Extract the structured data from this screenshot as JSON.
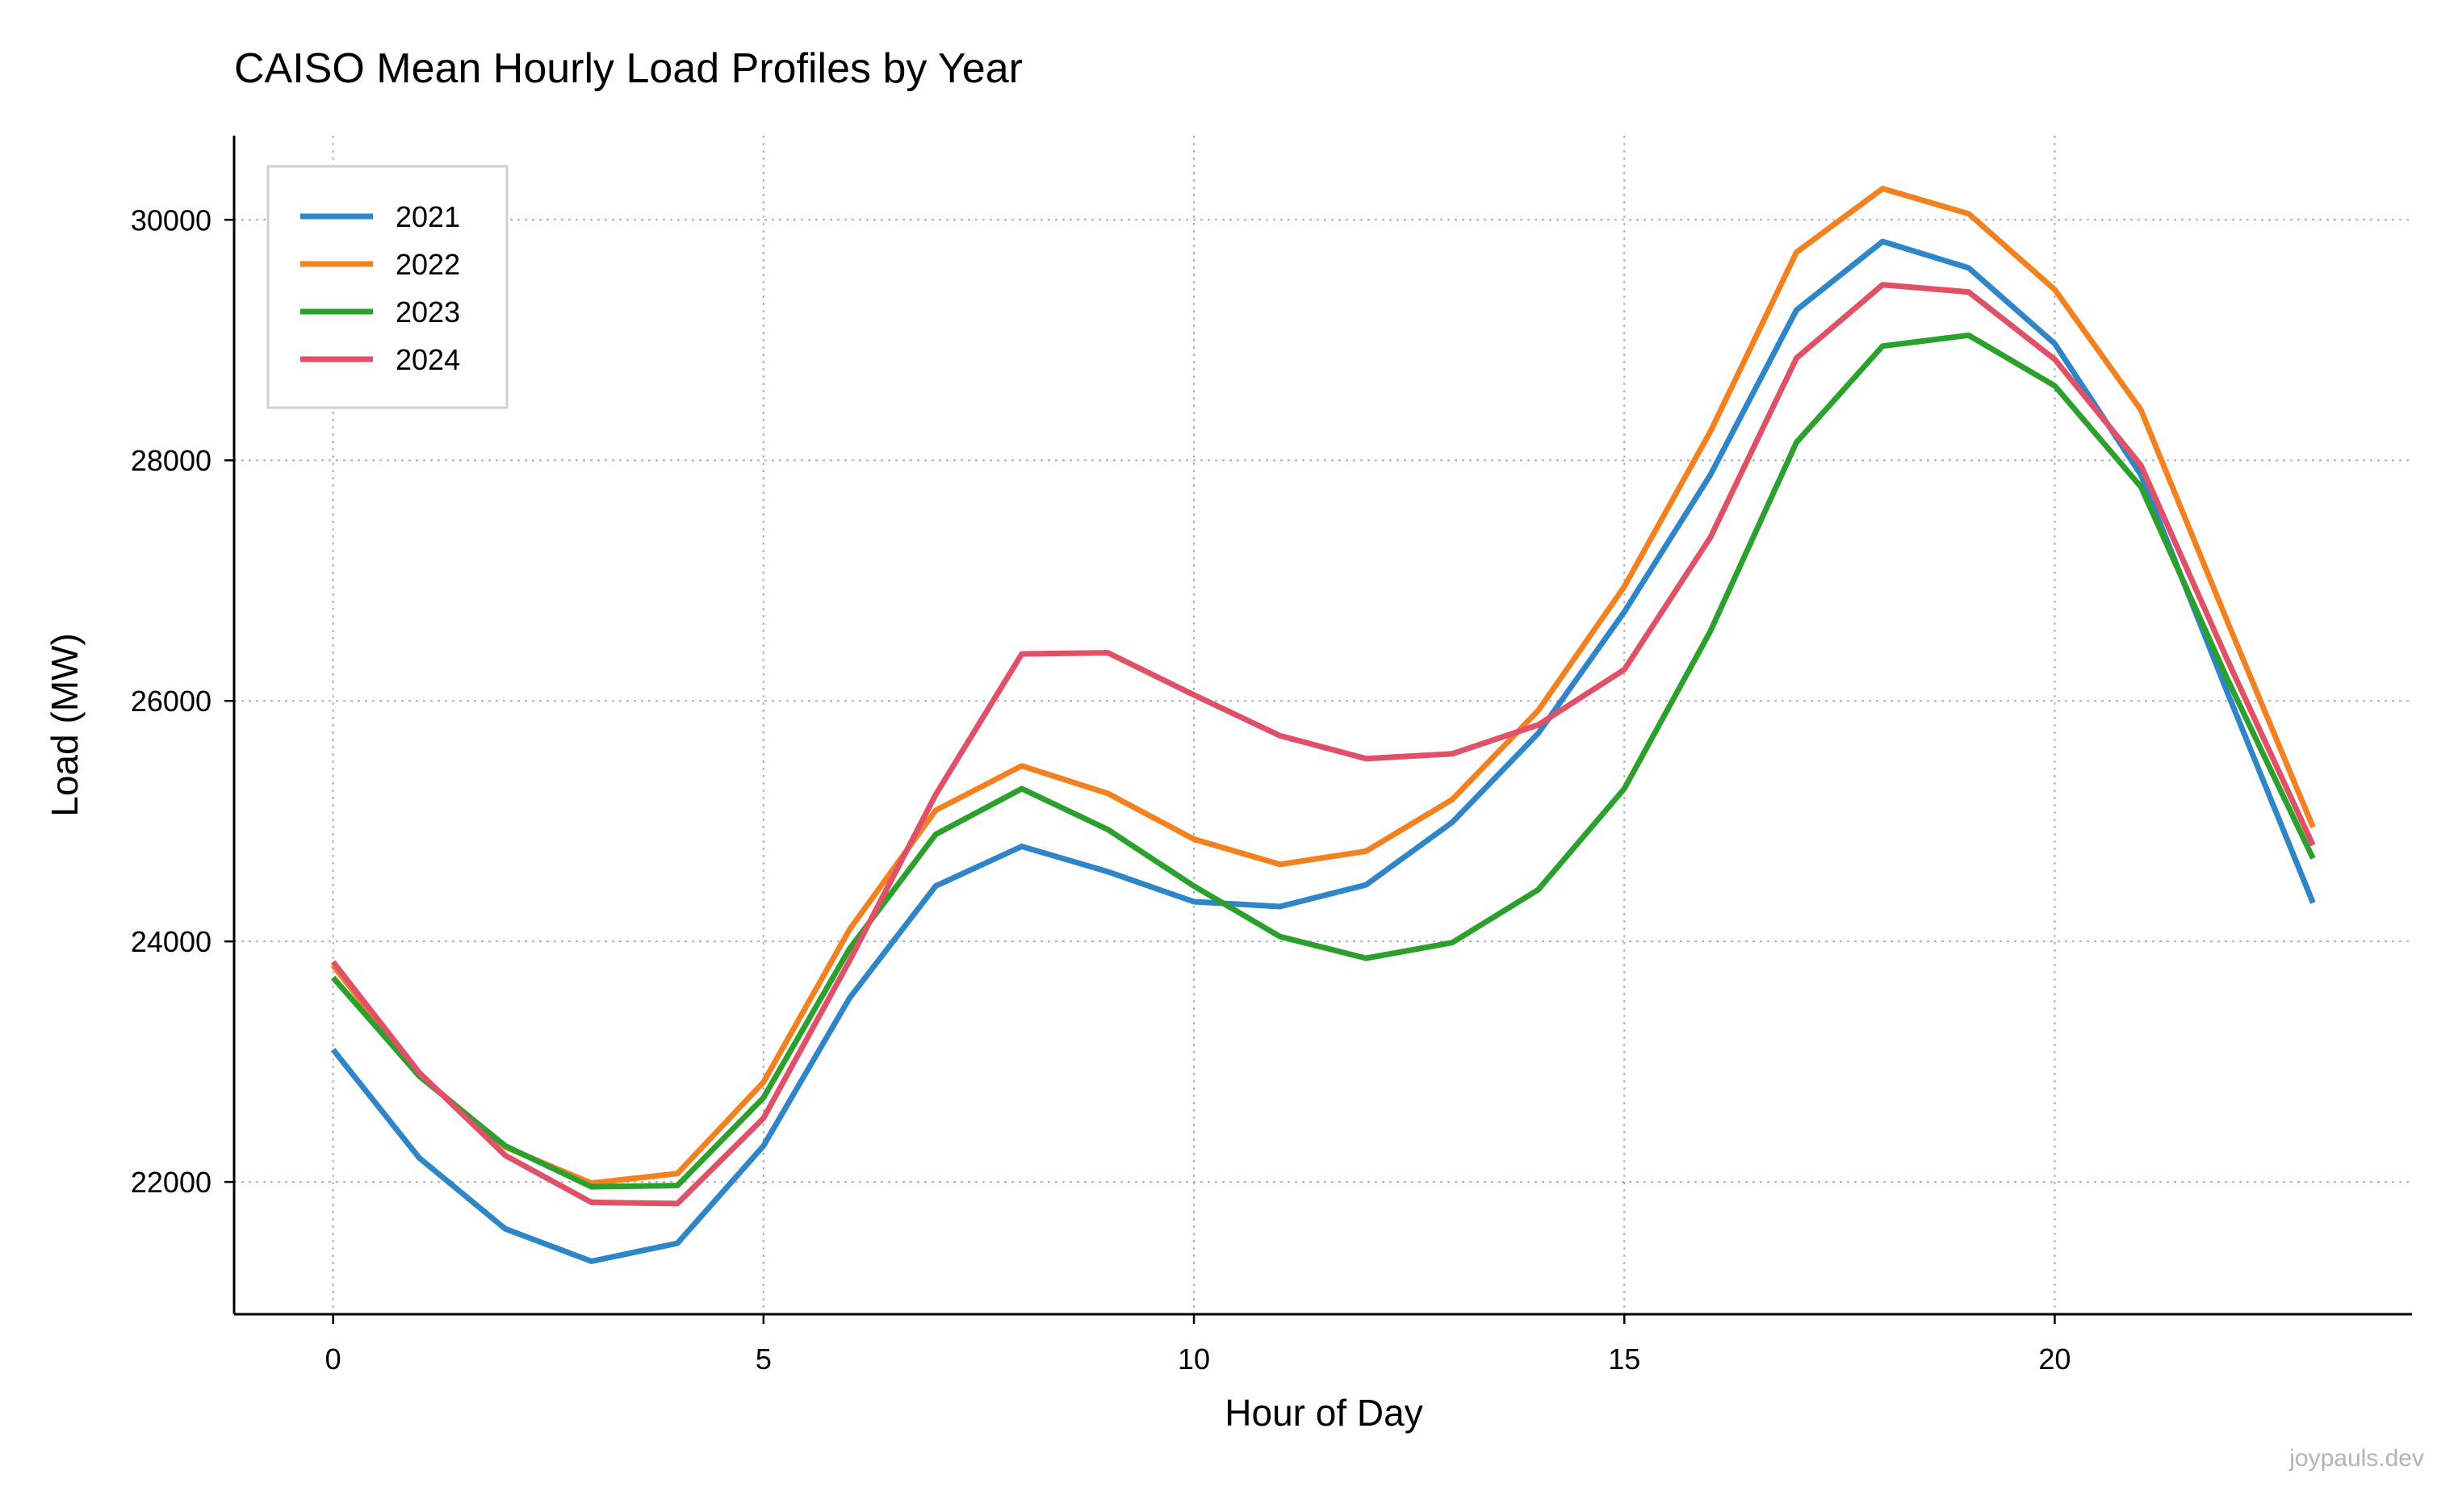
{
  "chart_data": {
    "type": "line",
    "title": "CAISO Mean Hourly Load Profiles by Year",
    "xlabel": "Hour of Day",
    "ylabel": "Load (MW)",
    "xlim": [
      -1.15,
      24.15
    ],
    "ylim": [
      20900,
      30700
    ],
    "xticks": [
      0,
      5,
      10,
      15,
      20
    ],
    "yticks": [
      22000,
      24000,
      26000,
      28000,
      30000
    ],
    "grid": true,
    "legend_position": "top-left",
    "x": [
      0,
      1,
      2,
      3,
      4,
      5,
      6,
      7,
      8,
      9,
      10,
      11,
      12,
      13,
      14,
      15,
      16,
      17,
      18,
      19,
      20,
      21,
      22,
      23
    ],
    "series": [
      {
        "name": "2021",
        "color": "#2e86c8",
        "values": [
          23100,
          22200,
          21610,
          21340,
          21490,
          22300,
          23530,
          24460,
          24790,
          24580,
          24330,
          24290,
          24470,
          24990,
          25730,
          26740,
          27880,
          29250,
          29820,
          29600,
          28970,
          27880,
          26080,
          24320
        ]
      },
      {
        "name": "2022",
        "color": "#f48120",
        "values": [
          23800,
          22890,
          22290,
          21990,
          22070,
          22830,
          24100,
          25090,
          25460,
          25230,
          24850,
          24640,
          24750,
          25180,
          25920,
          26950,
          28240,
          29730,
          30260,
          30050,
          29420,
          28420,
          26670,
          24950
        ]
      },
      {
        "name": "2023",
        "color": "#2ca02c",
        "values": [
          23700,
          22880,
          22300,
          21960,
          21970,
          22700,
          23940,
          24890,
          25270,
          24930,
          24460,
          24040,
          23860,
          23990,
          24430,
          25270,
          26580,
          28150,
          28950,
          29040,
          28620,
          27780,
          26190,
          24690
        ]
      },
      {
        "name": "2024",
        "color": "#e05168",
        "values": [
          23830,
          22910,
          22220,
          21830,
          21820,
          22530,
          23840,
          25220,
          26390,
          26400,
          26050,
          25710,
          25520,
          25560,
          25800,
          26260,
          27360,
          28850,
          29460,
          29400,
          28840,
          27960,
          26350,
          24800
        ]
      }
    ]
  },
  "watermark": "joypauls.dev"
}
